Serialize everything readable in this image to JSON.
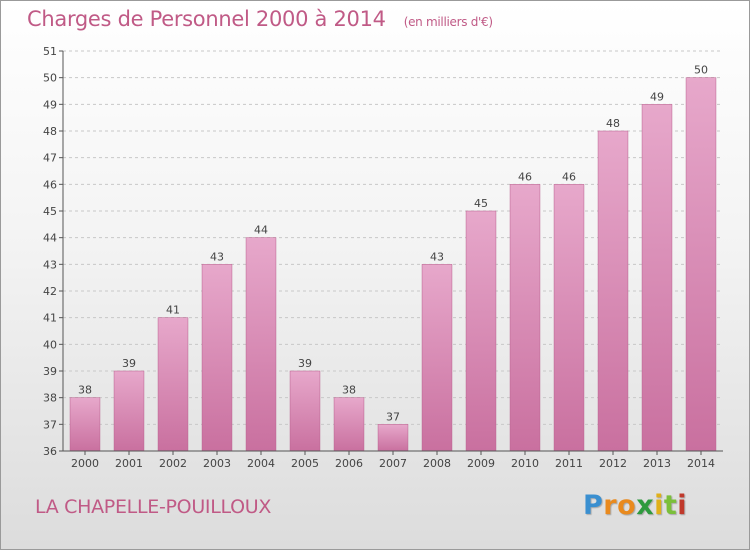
{
  "title": "Charges de Personnel 2000 à 2014",
  "subtitle": "(en milliers d'€)",
  "town": "LA CHAPELLE-POUILLOUX",
  "logo": {
    "letters": [
      "P",
      "r",
      "o",
      "x",
      "i",
      "t",
      "i"
    ],
    "colors": [
      "#3a8fd0",
      "#e98a1e",
      "#e98a1e",
      "#2e9a3e",
      "#e0b01a",
      "#7bbf3a",
      "#c0392b"
    ]
  },
  "colors": {
    "bar": "#c9709f",
    "bar_light": "#e7a8cb",
    "text": "#c05a86",
    "grid": "#c8c8c8"
  },
  "chart_data": {
    "type": "bar",
    "categories": [
      "2000",
      "2001",
      "2002",
      "2003",
      "2004",
      "2005",
      "2006",
      "2007",
      "2008",
      "2009",
      "2010",
      "2011",
      "2012",
      "2013",
      "2014"
    ],
    "values": [
      38,
      39,
      41,
      43,
      44,
      39,
      38,
      37,
      43,
      45,
      46,
      46,
      48,
      49,
      50
    ],
    "ylim": [
      36,
      51
    ],
    "yticks": [
      36,
      37,
      38,
      39,
      40,
      41,
      42,
      43,
      44,
      45,
      46,
      47,
      48,
      49,
      50,
      51
    ],
    "grid": true,
    "data_labels": true
  }
}
